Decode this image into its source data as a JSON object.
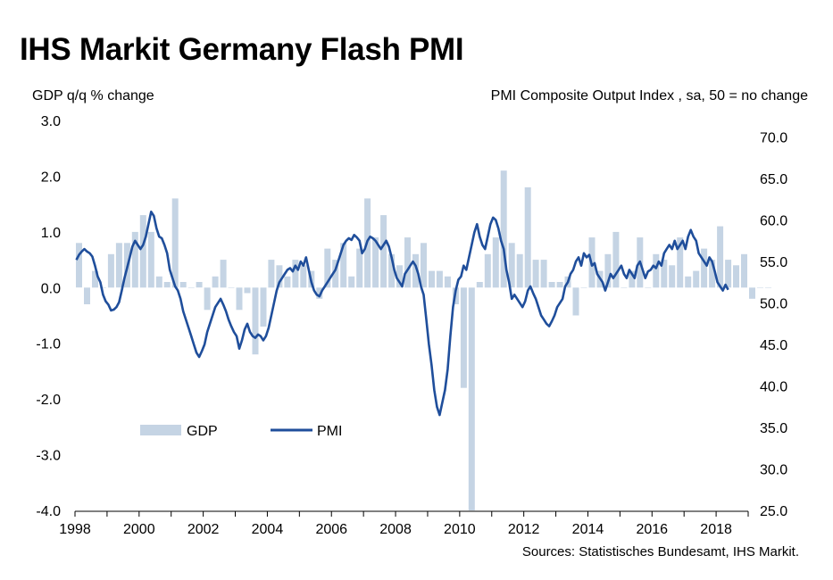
{
  "chart_data": {
    "type": "bar+line",
    "title": "IHS Markit Germany Flash PMI",
    "left_axis_label": "GDP q/q % change",
    "right_axis_label": "PMI Composite  Output Index , sa, 50 = no change",
    "source": "Sources: Statistisches Bundesamt, IHS Markit.",
    "x_range": [
      1998,
      2019
    ],
    "x_ticks": [
      "1998",
      "2000",
      "2002",
      "2004",
      "2006",
      "2008",
      "2010",
      "2012",
      "2014",
      "2016",
      "2018"
    ],
    "left_ylim": [
      -4.0,
      3.0
    ],
    "left_ticks": [
      "3.0",
      "2.0",
      "1.0",
      "0.0",
      "-1.0",
      "-2.0",
      "-3.0",
      "-4.0"
    ],
    "right_ylim": [
      25.0,
      72.0
    ],
    "right_ticks": [
      "70.0",
      "65.0",
      "60.0",
      "55.0",
      "50.0",
      "45.0",
      "40.0",
      "35.0",
      "30.0",
      "25.0"
    ],
    "legend": [
      {
        "name": "GDP",
        "color": "#c5d4e4"
      },
      {
        "name": "PMI",
        "color": "#1f4e9b"
      }
    ],
    "gdp_series": {
      "name": "GDP",
      "frequency": "quarterly",
      "start": 1998.0,
      "unit": "% q/q",
      "values": [
        0.8,
        -0.3,
        0.3,
        0.0,
        0.6,
        0.8,
        0.8,
        1.0,
        1.3,
        1.0,
        0.2,
        0.1,
        1.6,
        0.1,
        0.0,
        0.1,
        -0.4,
        0.2,
        0.5,
        0.0,
        -0.4,
        -0.1,
        -1.2,
        -0.7,
        0.5,
        0.4,
        0.2,
        0.5,
        0.4,
        0.3,
        -0.2,
        0.7,
        0.5,
        0.8,
        0.2,
        0.7,
        1.6,
        0.9,
        1.3,
        0.6,
        0.4,
        0.9,
        0.6,
        0.8,
        0.3,
        0.3,
        0.2,
        -0.3,
        -1.8,
        -4.0,
        0.1,
        0.6,
        0.9,
        2.1,
        0.8,
        0.6,
        1.8,
        0.5,
        0.5,
        0.1,
        0.1,
        0.2,
        -0.5,
        0.0,
        0.9,
        0.3,
        0.6,
        1.0,
        0.0,
        0.3,
        0.9,
        0.0,
        0.6,
        0.5,
        0.4,
        0.9,
        0.2,
        0.3,
        0.7,
        0.5,
        1.1,
        0.5,
        0.4,
        0.6,
        -0.2,
        0.0,
        0.0
      ]
    },
    "pmi_series": {
      "name": "PMI",
      "frequency": "monthly",
      "start": 1998.0,
      "unit": "index",
      "values": [
        55.2,
        55.8,
        56.2,
        56.5,
        56.2,
        56.0,
        55.6,
        54.5,
        53.2,
        52.5,
        51.0,
        50.2,
        49.8,
        49.1,
        49.2,
        49.5,
        50.1,
        51.5,
        53.0,
        54.2,
        55.5,
        56.8,
        57.5,
        57.0,
        56.5,
        57.0,
        58.0,
        59.5,
        61.0,
        60.5,
        59.0,
        58.0,
        57.8,
        57.0,
        56.0,
        54.0,
        53.0,
        52.0,
        51.5,
        50.5,
        49.0,
        48.0,
        47.0,
        46.0,
        45.0,
        44.0,
        43.5,
        44.2,
        45.0,
        46.5,
        47.5,
        48.5,
        49.5,
        50.0,
        50.5,
        49.8,
        49.0,
        48.0,
        47.2,
        46.5,
        46.0,
        44.5,
        45.5,
        46.8,
        47.5,
        46.5,
        46.0,
        45.8,
        46.2,
        46.0,
        45.5,
        46.0,
        47.0,
        48.5,
        50.0,
        51.5,
        52.5,
        53.0,
        53.5,
        54.0,
        54.2,
        53.8,
        54.5,
        54.0,
        55.0,
        54.5,
        55.5,
        54.0,
        52.5,
        51.5,
        51.0,
        50.8,
        51.5,
        52.0,
        52.5,
        53.0,
        53.5,
        54.0,
        55.0,
        56.0,
        57.0,
        57.5,
        57.8,
        57.6,
        58.2,
        57.9,
        57.5,
        56.0,
        56.5,
        57.5,
        58.0,
        57.8,
        57.5,
        57.0,
        56.5,
        57.0,
        57.5,
        56.8,
        55.5,
        54.0,
        53.0,
        52.5,
        52.0,
        53.5,
        54.0,
        54.5,
        55.0,
        54.5,
        53.5,
        52.0,
        51.0,
        48.0,
        45.0,
        42.5,
        39.5,
        37.5,
        36.5,
        38.0,
        39.5,
        42.0,
        46.0,
        49.5,
        51.5,
        52.8,
        53.2,
        54.5,
        54.0,
        55.5,
        57.0,
        58.5,
        59.5,
        58.0,
        57.0,
        56.5,
        58.0,
        59.5,
        60.3,
        60.0,
        59.0,
        57.5,
        56.5,
        54.0,
        52.5,
        50.5,
        51.0,
        50.5,
        50.0,
        49.5,
        50.2,
        51.5,
        52.0,
        51.2,
        50.5,
        49.5,
        48.5,
        48.0,
        47.5,
        47.2,
        47.8,
        48.5,
        49.5,
        50.0,
        50.5,
        52.0,
        52.5,
        53.5,
        54.0,
        55.0,
        55.5,
        54.5,
        56.0,
        55.5,
        55.8,
        54.5,
        54.8,
        53.5,
        53.0,
        52.5,
        51.5,
        52.5,
        53.5,
        53.0,
        53.5,
        54.0,
        54.5,
        53.5,
        53.0,
        54.0,
        53.5,
        53.0,
        54.5,
        55.0,
        54.0,
        53.0,
        53.8,
        54.0,
        54.5,
        54.2,
        55.0,
        54.5,
        56.0,
        56.5,
        57.0,
        56.5,
        57.5,
        56.5,
        57.0,
        57.5,
        56.5,
        58.0,
        58.8,
        58.0,
        57.5,
        56.0,
        55.5,
        55.0,
        54.5,
        55.5,
        55.0,
        53.8,
        52.5,
        52.0,
        51.5,
        52.2,
        51.6
      ]
    }
  }
}
